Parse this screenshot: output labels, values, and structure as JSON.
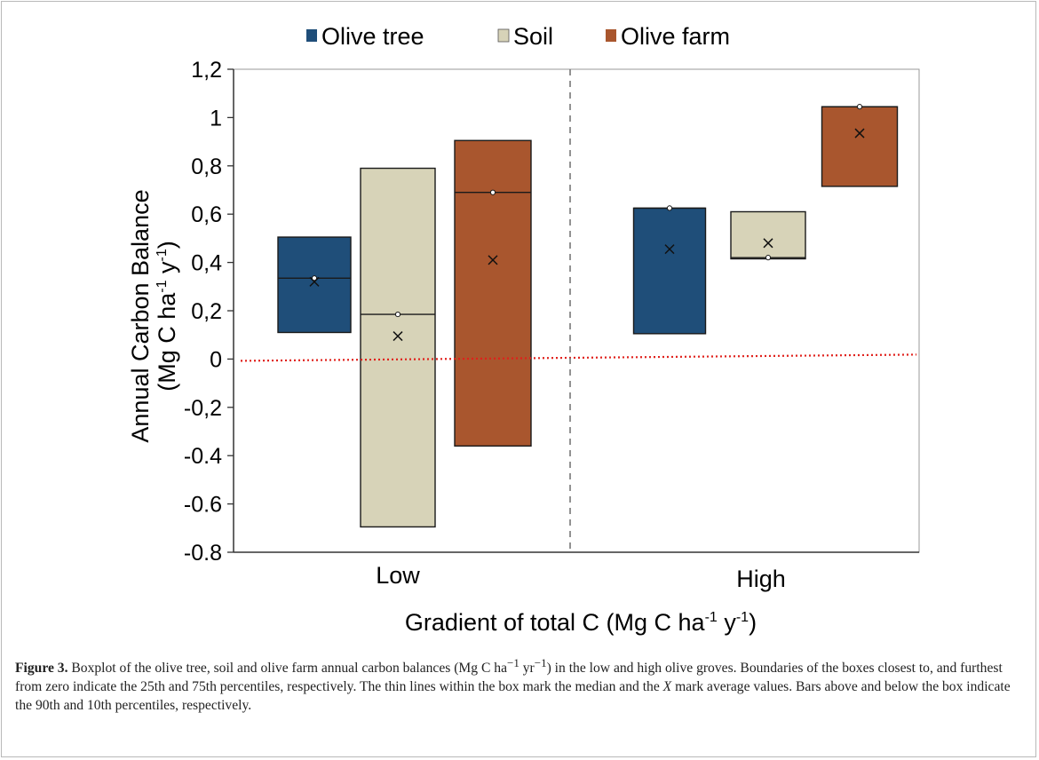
{
  "chart_data": {
    "type": "box",
    "legend": {
      "placement": "top",
      "entries": [
        {
          "name": "Olive tree",
          "color": "#1f4e79"
        },
        {
          "name": "Soil",
          "color": "#d7d3b8"
        },
        {
          "name": "Olive farm",
          "color": "#a9562e"
        }
      ]
    },
    "ylabel_line1": "Annual Carbon Balance",
    "ylabel_line2_prefix": "(Mg C ha",
    "ylabel_line2_sup1": "-1",
    "ylabel_line2_mid": " y",
    "ylabel_line2_sup2": "-1",
    "ylabel_line2_suffix": ")",
    "xlabel_prefix": "Gradient of total C (Mg C ha",
    "xlabel_sup1": "-1",
    "xlabel_mid": " y",
    "xlabel_sup2": "-1",
    "xlabel_suffix": ")",
    "ylim": [
      -0.8,
      1.2
    ],
    "yticks": [
      {
        "value": 1.2,
        "label": "1,2"
      },
      {
        "value": 1.0,
        "label": "1"
      },
      {
        "value": 0.8,
        "label": "0,8"
      },
      {
        "value": 0.6,
        "label": "0,6"
      },
      {
        "value": 0.4,
        "label": "0,4"
      },
      {
        "value": 0.2,
        "label": "0,2"
      },
      {
        "value": 0.0,
        "label": "0"
      },
      {
        "value": -0.2,
        "label": "-0,2"
      },
      {
        "value": -0.4,
        "label": "-0.4"
      },
      {
        "value": -0.6,
        "label": "-0.6"
      },
      {
        "value": -0.8,
        "label": "-0.8"
      }
    ],
    "categories": [
      "Low",
      "High"
    ],
    "groups": [
      {
        "category": "Low",
        "boxes": [
          {
            "series": "Olive tree",
            "low": 0.11,
            "high": 0.505,
            "median": 0.335,
            "mean": 0.32
          },
          {
            "series": "Soil",
            "low": -0.695,
            "high": 0.79,
            "median": 0.185,
            "mean": 0.095
          },
          {
            "series": "Olive farm",
            "low": -0.36,
            "high": 0.905,
            "median": 0.69,
            "mean": 0.41
          }
        ]
      },
      {
        "category": "High",
        "boxes": [
          {
            "series": "Olive tree",
            "low": 0.105,
            "high": 0.625,
            "median": 0.625,
            "mean": 0.455
          },
          {
            "series": "Soil",
            "low": 0.415,
            "high": 0.61,
            "median": 0.42,
            "mean": 0.48
          },
          {
            "series": "Olive farm",
            "low": 0.715,
            "high": 1.045,
            "median": 1.045,
            "mean": 0.935
          }
        ]
      }
    ],
    "reference_line": {
      "value": 0,
      "color": "#e0201b",
      "style": "dotted"
    },
    "group_divider": {
      "style": "dashed",
      "color": "#777777"
    },
    "grid": false
  },
  "caption": {
    "label": "Figure 3.",
    "text_part1": " Boxplot of the olive tree, soil and olive farm annual carbon balances (Mg C ha",
    "sup1": "−1",
    "text_part2": " yr",
    "sup2": "−1",
    "text_part3": ") in the low and high olive groves. Boundaries of the boxes closest to, and furthest from zero indicate the 25th and 75th percentiles, respectively. The thin lines within the box mark the median and the ",
    "x_italic": "X",
    "text_part4": " mark average values. Bars above and below the box indicate the 90th and 10th percentiles, respectively."
  }
}
